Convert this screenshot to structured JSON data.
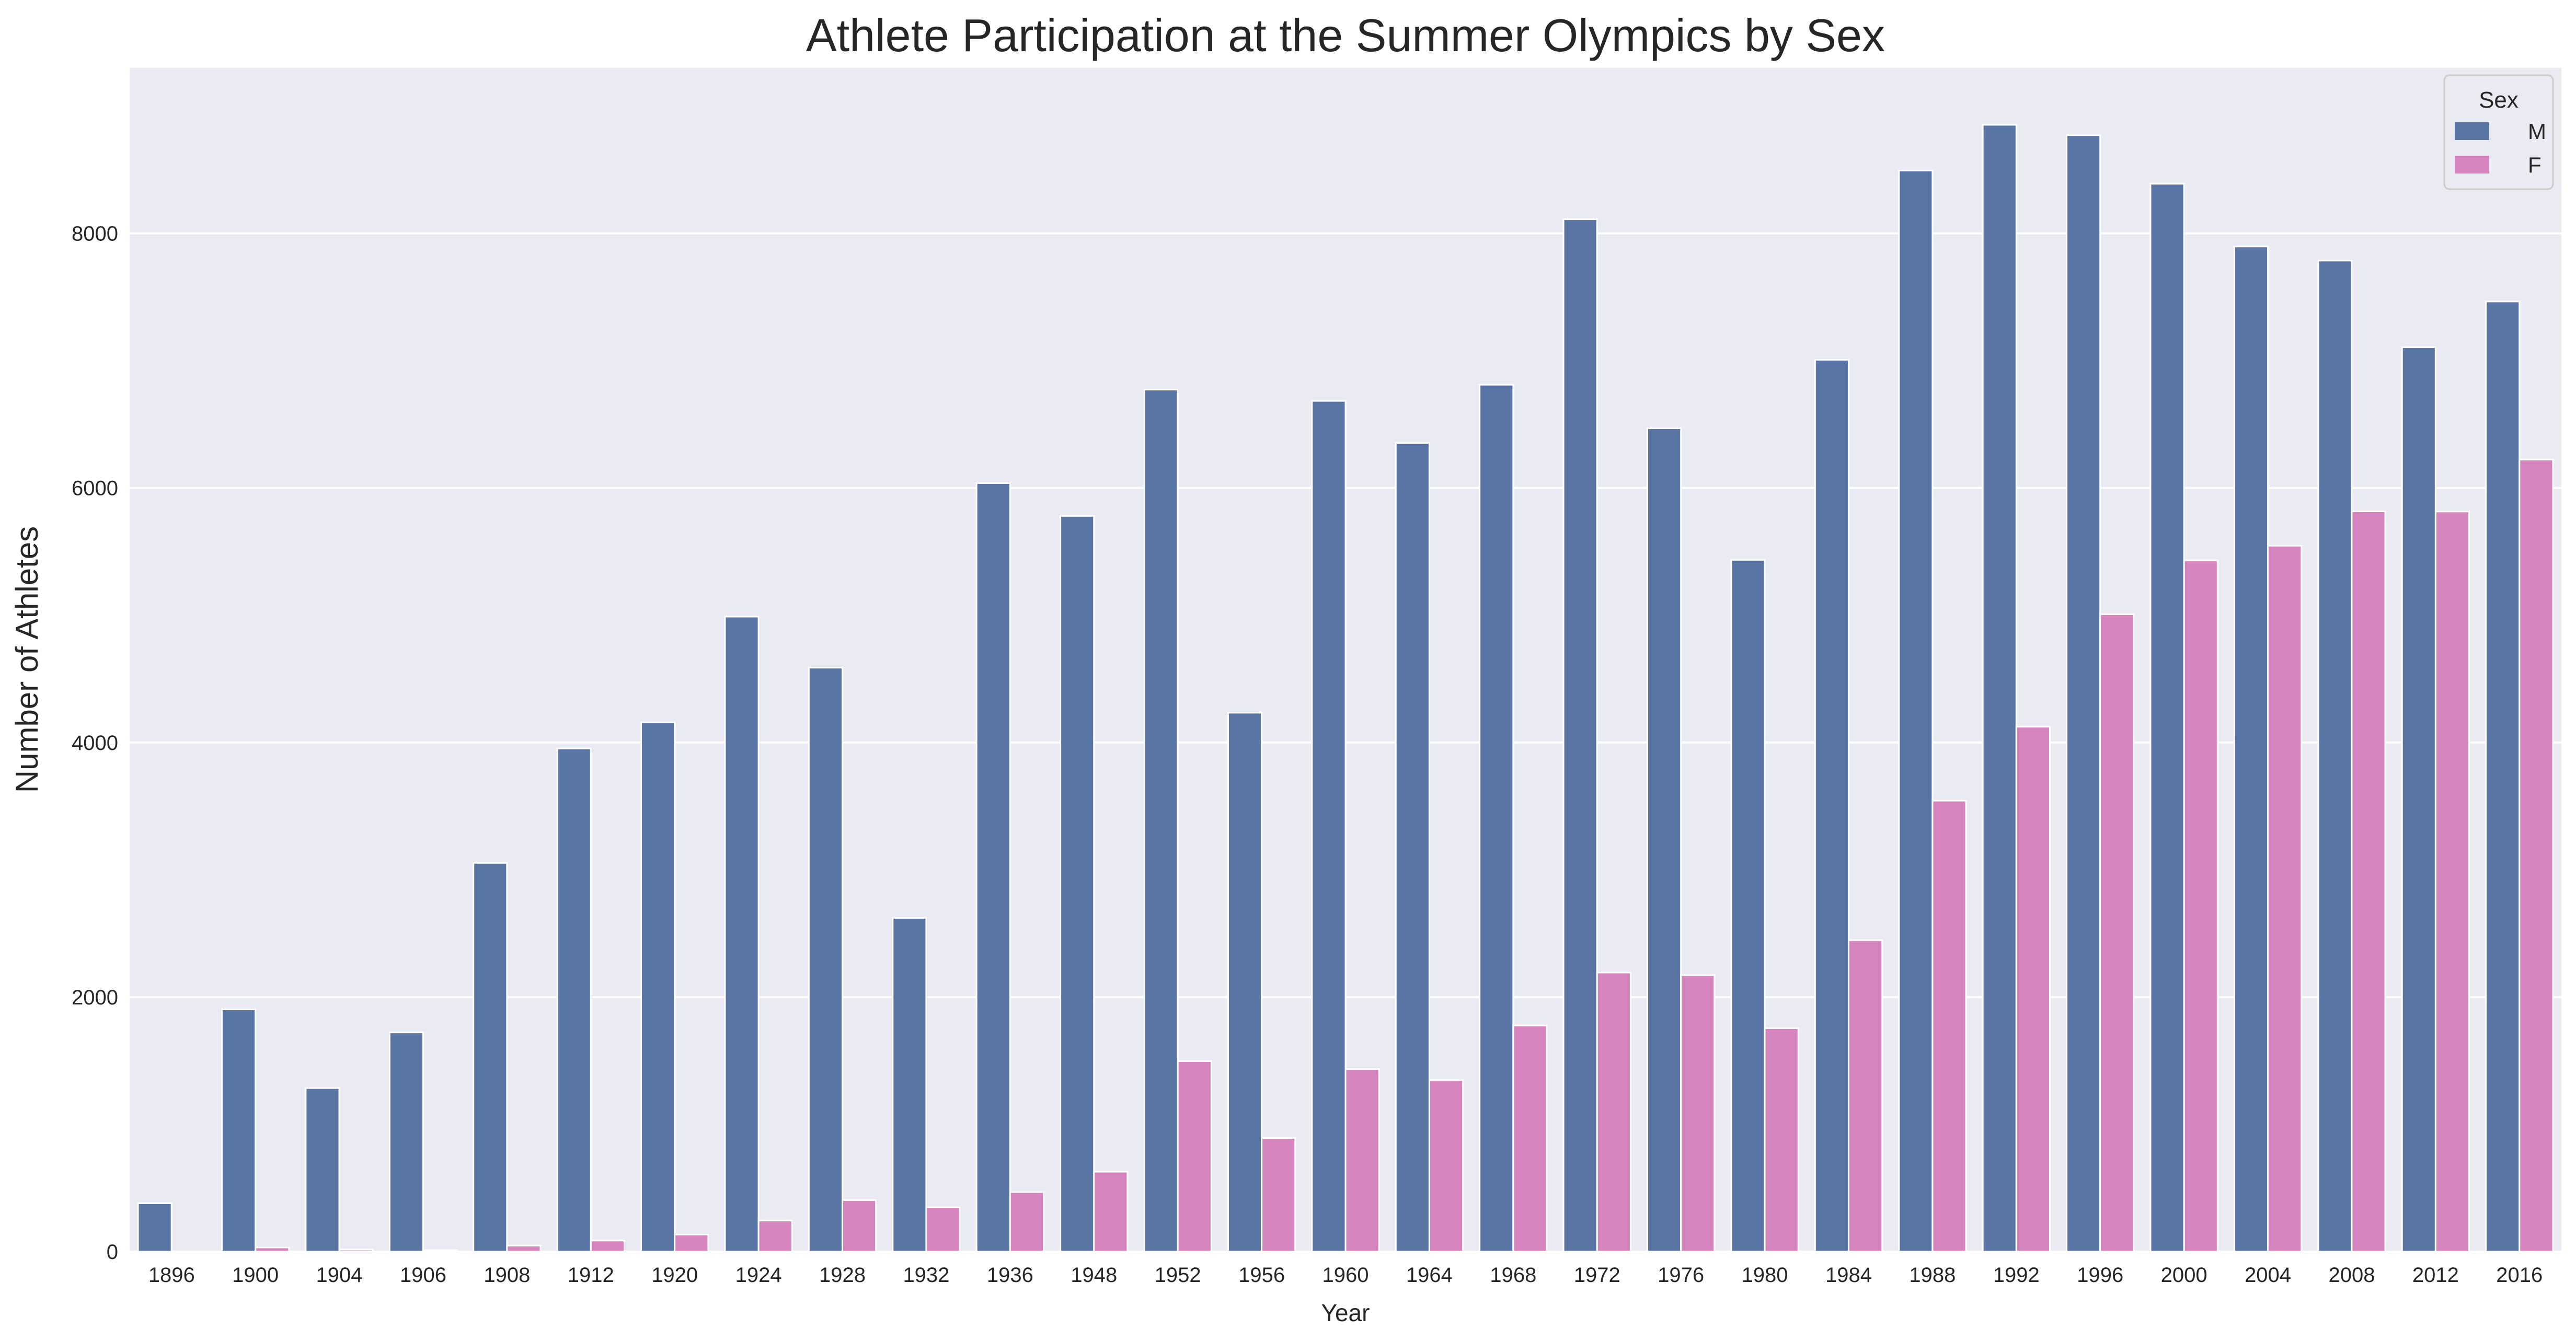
{
  "chart_data": {
    "type": "bar",
    "title": "Athlete Participation at the Summer Olympics by Sex",
    "xlabel": "Year",
    "ylabel": "Number of Athletes",
    "ylim": [
      0,
      9300
    ],
    "yticks": [
      "0",
      "2000",
      "4000",
      "6000",
      "8000"
    ],
    "ytick_values": [
      0,
      2000,
      4000,
      6000,
      8000
    ],
    "grid": true,
    "legend_position": "top-right",
    "legend_title": "Sex",
    "categories": [
      "1896",
      "1900",
      "1904",
      "1906",
      "1908",
      "1912",
      "1920",
      "1924",
      "1928",
      "1932",
      "1936",
      "1948",
      "1952",
      "1956",
      "1960",
      "1964",
      "1968",
      "1972",
      "1976",
      "1980",
      "1984",
      "1988",
      "1992",
      "1996",
      "2000",
      "2004",
      "2008",
      "2012",
      "2016"
    ],
    "series": [
      {
        "name": "M",
        "color": "#5975a4",
        "values": [
          380,
          1903,
          1285,
          1722,
          3054,
          3953,
          4158,
          4989,
          4588,
          2622,
          6038,
          5780,
          6773,
          4234,
          6684,
          6354,
          6811,
          8111,
          6469,
          5435,
          7007,
          8494,
          8853,
          8772,
          8390,
          7897,
          7786,
          7105,
          7465
        ]
      },
      {
        "name": "F",
        "color": "#d684bd",
        "values": [
          0,
          33,
          16,
          11,
          47,
          87,
          134,
          244,
          404,
          347,
          468,
          628,
          1497,
          893,
          1435,
          1348,
          1777,
          2193,
          2172,
          1756,
          2447,
          3543,
          4124,
          5008,
          5431,
          5546,
          5816,
          5815,
          6223
        ]
      }
    ]
  }
}
